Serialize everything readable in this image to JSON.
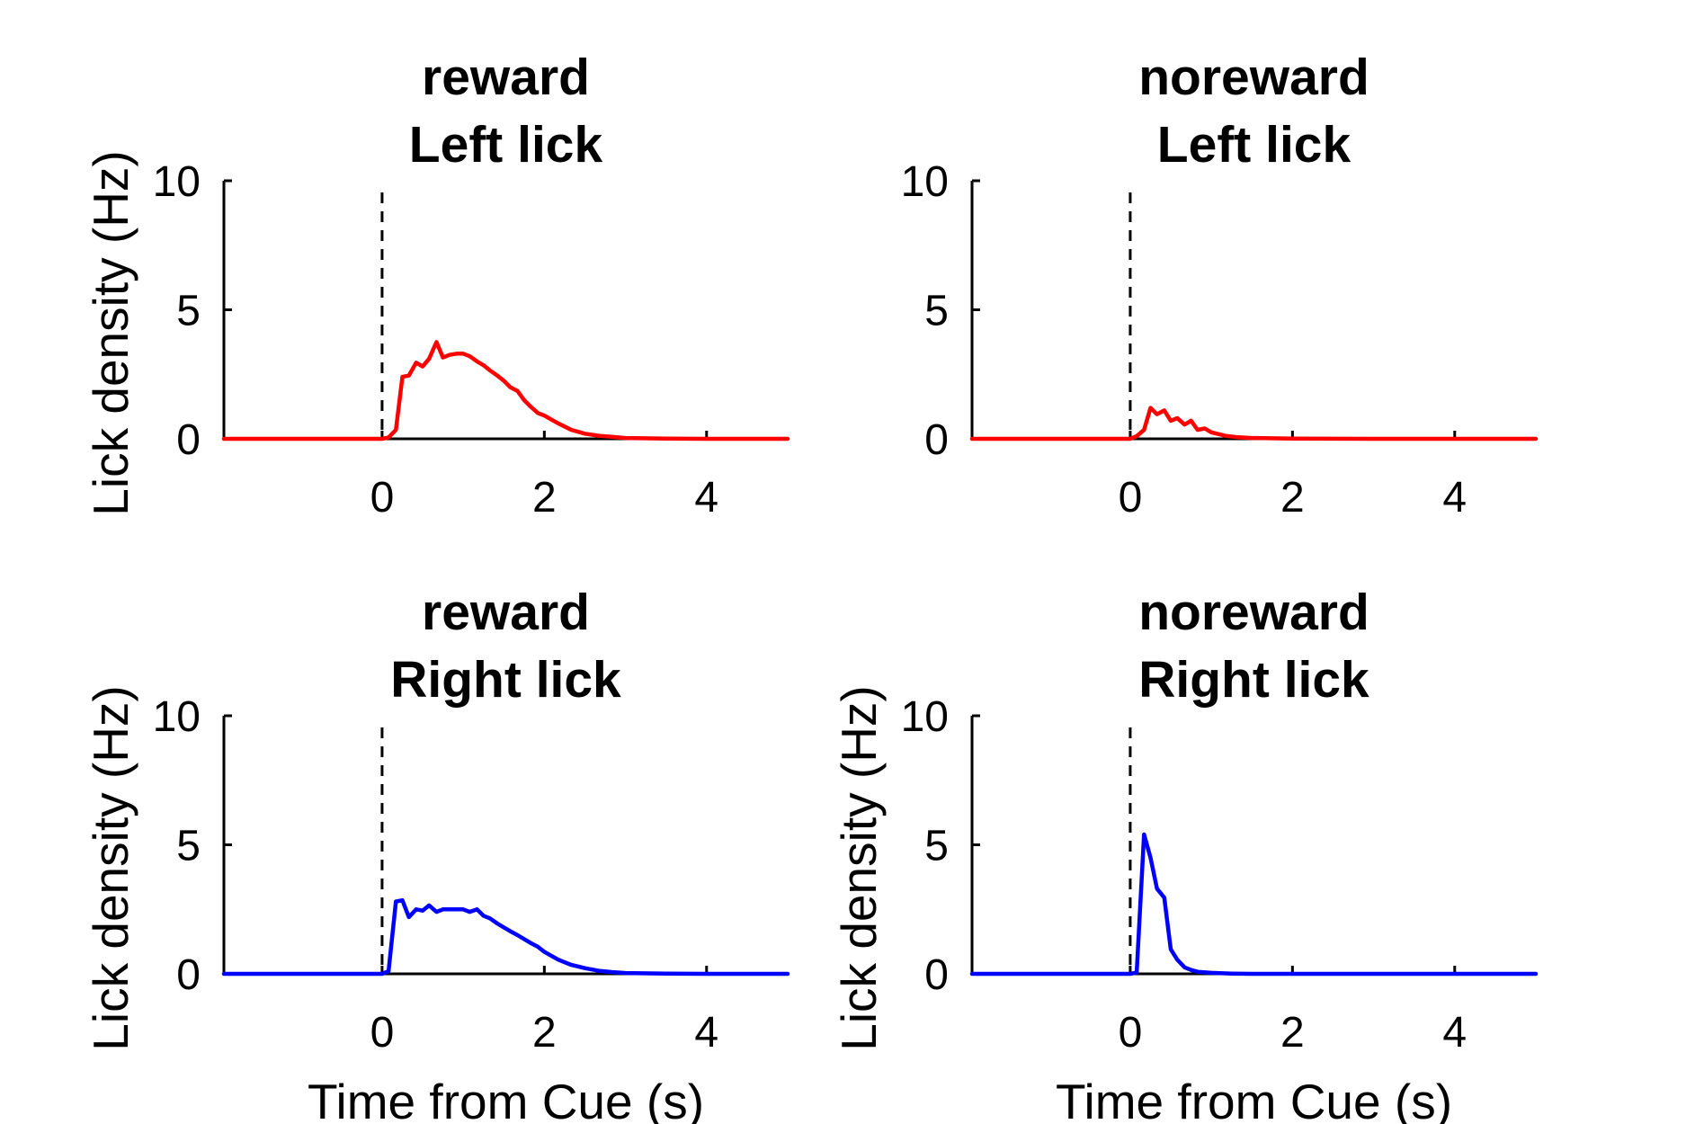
{
  "chart_data": [
    {
      "type": "line",
      "title": [
        "reward",
        "Left lick"
      ],
      "xlabel": "",
      "ylabel": "Lick density (Hz)",
      "xlim": [
        -1.95,
        5
      ],
      "ylim": [
        0,
        10
      ],
      "xticks": [
        0,
        2,
        4
      ],
      "yticks": [
        0,
        5,
        10
      ],
      "cue_x": 0,
      "series": [
        {
          "color": "#ff0000",
          "x": [
            -1.95,
            -1,
            0,
            0.08,
            0.17,
            0.25,
            0.33,
            0.42,
            0.5,
            0.58,
            0.67,
            0.75,
            0.83,
            0.92,
            1.0,
            1.08,
            1.17,
            1.25,
            1.33,
            1.42,
            1.5,
            1.58,
            1.67,
            1.75,
            1.83,
            1.92,
            2.0,
            2.17,
            2.33,
            2.5,
            2.67,
            2.83,
            3.0,
            3.5,
            4.0,
            5.0
          ],
          "y": [
            0,
            0,
            0,
            0.05,
            0.35,
            2.4,
            2.45,
            2.95,
            2.8,
            3.1,
            3.75,
            3.15,
            3.25,
            3.3,
            3.3,
            3.2,
            3.0,
            2.85,
            2.65,
            2.45,
            2.25,
            2.0,
            1.85,
            1.5,
            1.25,
            1.0,
            0.9,
            0.6,
            0.35,
            0.2,
            0.12,
            0.08,
            0.03,
            0.01,
            0,
            0
          ]
        }
      ]
    },
    {
      "type": "line",
      "title": [
        "noreward",
        "Left lick"
      ],
      "xlabel": "",
      "ylabel": "",
      "xlim": [
        -1.95,
        5
      ],
      "ylim": [
        0,
        10
      ],
      "xticks": [
        0,
        2,
        4
      ],
      "yticks": [
        0,
        5,
        10
      ],
      "cue_x": 0,
      "series": [
        {
          "color": "#ff0000",
          "x": [
            -1.95,
            -1,
            0,
            0.08,
            0.17,
            0.25,
            0.33,
            0.42,
            0.5,
            0.58,
            0.67,
            0.75,
            0.83,
            0.92,
            1.0,
            1.17,
            1.33,
            1.5,
            2.0,
            3.0,
            5.0
          ],
          "y": [
            0,
            0,
            0,
            0.1,
            0.35,
            1.2,
            0.95,
            1.1,
            0.7,
            0.8,
            0.55,
            0.7,
            0.35,
            0.4,
            0.25,
            0.12,
            0.06,
            0.03,
            0.01,
            0,
            0
          ]
        }
      ]
    },
    {
      "type": "line",
      "title": [
        "reward",
        "Right lick"
      ],
      "xlabel": "Time from Cue (s)",
      "ylabel": "Lick density (Hz)",
      "xlim": [
        -1.95,
        5
      ],
      "ylim": [
        0,
        10
      ],
      "xticks": [
        0,
        2,
        4
      ],
      "yticks": [
        0,
        5,
        10
      ],
      "cue_x": 0,
      "series": [
        {
          "color": "#0000ff",
          "x": [
            -1.95,
            -1,
            0,
            0.08,
            0.17,
            0.25,
            0.33,
            0.42,
            0.5,
            0.58,
            0.67,
            0.75,
            0.83,
            0.92,
            1.0,
            1.08,
            1.17,
            1.25,
            1.33,
            1.42,
            1.5,
            1.58,
            1.67,
            1.75,
            1.83,
            1.92,
            2.0,
            2.17,
            2.33,
            2.5,
            2.67,
            2.83,
            3.0,
            3.5,
            4.0,
            5.0
          ],
          "y": [
            0,
            0,
            0,
            0.1,
            2.8,
            2.85,
            2.2,
            2.5,
            2.45,
            2.65,
            2.4,
            2.5,
            2.5,
            2.5,
            2.5,
            2.4,
            2.5,
            2.25,
            2.15,
            1.95,
            1.8,
            1.65,
            1.5,
            1.35,
            1.2,
            1.05,
            0.85,
            0.55,
            0.35,
            0.22,
            0.12,
            0.07,
            0.03,
            0.01,
            0,
            0
          ]
        }
      ]
    },
    {
      "type": "line",
      "title": [
        "noreward",
        "Right lick"
      ],
      "xlabel": "Time from Cue (s)",
      "ylabel": "Lick density (Hz)",
      "xlim": [
        -1.95,
        5
      ],
      "ylim": [
        0,
        10
      ],
      "xticks": [
        0,
        2,
        4
      ],
      "yticks": [
        0,
        5,
        10
      ],
      "cue_x": 0,
      "series": [
        {
          "color": "#0000ff",
          "x": [
            -1.95,
            -1,
            0,
            0.08,
            0.17,
            0.25,
            0.33,
            0.42,
            0.5,
            0.58,
            0.67,
            0.75,
            0.83,
            1.0,
            1.25,
            1.5,
            2.0,
            3.0,
            5.0
          ],
          "y": [
            0,
            0,
            0,
            0.05,
            5.4,
            4.5,
            3.3,
            2.95,
            0.95,
            0.55,
            0.25,
            0.15,
            0.08,
            0.04,
            0.01,
            0,
            0,
            0,
            0
          ]
        }
      ]
    }
  ]
}
